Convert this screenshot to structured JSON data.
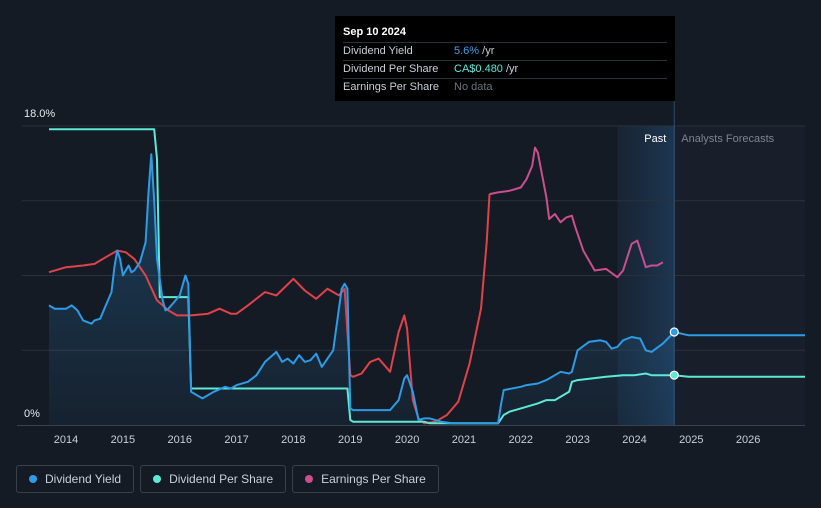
{
  "tooltip": {
    "date": "Sep 10 2024",
    "rows": [
      {
        "label": "Dividend Yield",
        "value": "5.6%",
        "unit": " /yr"
      },
      {
        "label": "Dividend Per Share",
        "value": "CA$0.480",
        "unit": " /yr"
      },
      {
        "label": "Earnings Per Share",
        "value": "No data",
        "unit": ""
      }
    ]
  },
  "regions": {
    "past": "Past",
    "forecast": "Analysts Forecasts"
  },
  "legend": [
    {
      "label": "Dividend Yield",
      "color": "#2d9be6"
    },
    {
      "label": "Dividend Per Share",
      "color": "#5ee8d6"
    },
    {
      "label": "Earnings Per Share",
      "color": "#c94f8f"
    }
  ],
  "colors": {
    "background": "#151b25",
    "dividend_yield": "#2d9be6",
    "dividend_per_share": "#5ee8d6",
    "eps_past": "#e0424a",
    "eps_recent": "#c94f8f",
    "forecast_band": "#1c2e44"
  },
  "chart_data": {
    "type": "line",
    "y_tick_labels": [
      "18.0%",
      "0%"
    ],
    "ylim": [
      0,
      18
    ],
    "xlim": [
      2013.7,
      2027
    ],
    "x_tick_labels": [
      "2014",
      "2015",
      "2016",
      "2017",
      "2018",
      "2019",
      "2020",
      "2021",
      "2022",
      "2023",
      "2024",
      "2025",
      "2026"
    ],
    "x_ticks": [
      2014,
      2015,
      2016,
      2017,
      2018,
      2019,
      2020,
      2021,
      2022,
      2023,
      2024,
      2025,
      2026
    ],
    "forecast_start": 2024.7,
    "past_band_start": 2023.7,
    "grid": true,
    "series": [
      {
        "name": "Dividend Yield",
        "x": [
          2013.7,
          2013.8,
          2014.0,
          2014.1,
          2014.2,
          2014.3,
          2014.45,
          2014.5,
          2014.6,
          2014.7,
          2014.8,
          2014.85,
          2014.9,
          2014.95,
          2015.0,
          2015.1,
          2015.15,
          2015.2,
          2015.3,
          2015.4,
          2015.45,
          2015.5,
          2015.55,
          2015.6,
          2015.7,
          2015.75,
          2015.8,
          2015.9,
          2016.0,
          2016.1,
          2016.15,
          2016.2,
          2016.3,
          2016.4,
          2016.6,
          2016.8,
          2016.9,
          2017.0,
          2017.2,
          2017.35,
          2017.5,
          2017.6,
          2017.7,
          2017.8,
          2017.9,
          2018.0,
          2018.1,
          2018.2,
          2018.3,
          2018.4,
          2018.5,
          2018.6,
          2018.7,
          2018.8,
          2018.85,
          2018.9,
          2018.95,
          2019.0,
          2019.05,
          2019.3,
          2019.5,
          2019.7,
          2019.85,
          2019.95,
          2020.0,
          2020.1,
          2020.2,
          2020.3,
          2020.4,
          2020.6,
          2020.8,
          2021.0,
          2021.3,
          2021.6,
          2021.65,
          2021.7,
          2022.0,
          2022.1,
          2022.3,
          2022.45,
          2022.5,
          2022.7,
          2022.85,
          2022.9,
          2023.0,
          2023.2,
          2023.4,
          2023.5,
          2023.6,
          2023.7,
          2023.8,
          2023.95,
          2024.1,
          2024.2,
          2024.3,
          2024.5,
          2024.7
        ],
        "y": [
          7.2,
          7.0,
          7.0,
          7.2,
          6.9,
          6.3,
          6.1,
          6.3,
          6.4,
          7.2,
          8.0,
          9.5,
          10.5,
          10.0,
          9.0,
          9.6,
          9.2,
          9.3,
          9.8,
          11.0,
          14.0,
          16.3,
          13.5,
          10.0,
          7.5,
          6.9,
          7.0,
          7.4,
          7.8,
          9.0,
          8.5,
          2.0,
          1.8,
          1.6,
          2.0,
          2.3,
          2.2,
          2.4,
          2.6,
          3.0,
          3.8,
          4.1,
          4.4,
          3.8,
          4.0,
          3.7,
          4.2,
          3.8,
          3.9,
          4.3,
          3.5,
          4.0,
          4.5,
          7.0,
          8.2,
          8.5,
          8.2,
          1.0,
          0.9,
          0.9,
          0.9,
          0.9,
          1.5,
          2.8,
          3.0,
          2.0,
          0.3,
          0.4,
          0.4,
          0.2,
          0.1,
          0.1,
          0.1,
          0.1,
          1.2,
          2.1,
          2.3,
          2.4,
          2.5,
          2.7,
          2.8,
          3.2,
          3.1,
          3.2,
          4.5,
          5.0,
          5.1,
          5.0,
          4.6,
          4.7,
          5.1,
          5.3,
          5.2,
          4.5,
          4.4,
          4.9,
          5.6
        ]
      },
      {
        "name": "Dividend Per Share",
        "x": [
          2013.7,
          2015.55,
          2015.6,
          2015.65,
          2016.1,
          2016.15,
          2016.2,
          2018.9,
          2018.95,
          2019.0,
          2019.05,
          2020.3,
          2020.4,
          2021.6,
          2021.7,
          2021.8,
          2022.0,
          2022.3,
          2022.45,
          2022.6,
          2022.8,
          2022.85,
          2022.9,
          2023.0,
          2023.5,
          2023.8,
          2024.0,
          2024.2,
          2024.3,
          2024.5,
          2024.7
        ],
        "y": [
          17.8,
          17.8,
          16.0,
          7.7,
          7.7,
          7.7,
          2.2,
          2.2,
          2.2,
          0.3,
          0.2,
          0.2,
          0.1,
          0.1,
          0.6,
          0.8,
          1.0,
          1.3,
          1.5,
          1.5,
          1.9,
          2.0,
          2.6,
          2.7,
          2.9,
          3.0,
          3.0,
          3.1,
          3.0,
          3.0,
          3.0
        ]
      },
      {
        "name": "Earnings Per Share",
        "x": [
          2013.7,
          2014.0,
          2014.3,
          2014.5,
          2014.7,
          2014.9,
          2015.05,
          2015.2,
          2015.4,
          2015.6,
          2015.8,
          2015.95,
          2016.2,
          2016.5,
          2016.7,
          2016.9,
          2017.0,
          2017.2,
          2017.5,
          2017.7,
          2017.85,
          2018.0,
          2018.2,
          2018.4,
          2018.6,
          2018.8,
          2018.9,
          2019.0,
          2019.05,
          2019.2,
          2019.35,
          2019.5,
          2019.6,
          2019.7,
          2019.85,
          2019.95,
          2020.0,
          2020.1,
          2020.2,
          2020.3,
          2020.5,
          2020.7,
          2020.9,
          2021.1,
          2021.3,
          2021.4,
          2021.45,
          2021.6,
          2021.8,
          2022.0,
          2022.1,
          2022.2,
          2022.25,
          2022.3,
          2022.45,
          2022.5,
          2022.6,
          2022.7,
          2022.8,
          2022.9,
          2022.95,
          2023.1,
          2023.3,
          2023.5,
          2023.7,
          2023.8,
          2023.95,
          2024.05,
          2024.2,
          2024.3,
          2024.4,
          2024.5
        ],
        "y": [
          9.2,
          9.5,
          9.6,
          9.7,
          10.1,
          10.5,
          10.4,
          10.0,
          9.0,
          7.5,
          6.9,
          6.6,
          6.6,
          6.7,
          7.0,
          6.7,
          6.7,
          7.2,
          8.0,
          7.8,
          8.3,
          8.8,
          8.1,
          7.6,
          8.2,
          7.8,
          8.2,
          3.0,
          2.9,
          3.1,
          3.8,
          4.0,
          3.6,
          3.2,
          5.6,
          6.6,
          5.8,
          1.5,
          0.4,
          0.1,
          0.2,
          0.6,
          1.4,
          3.7,
          7.0,
          11.0,
          13.9,
          14.0,
          14.1,
          14.3,
          14.8,
          15.6,
          16.7,
          16.4,
          13.7,
          12.4,
          12.7,
          12.2,
          12.5,
          12.6,
          12.0,
          10.5,
          9.3,
          9.4,
          8.9,
          9.3,
          10.9,
          11.1,
          9.5,
          9.6,
          9.6,
          9.8
        ]
      }
    ],
    "forecast": {
      "dividend_yield": {
        "x": [
          2024.7,
          2024.95,
          2027
        ],
        "y": [
          5.6,
          5.4,
          5.4
        ]
      },
      "dividend_per_share": {
        "x": [
          2024.7,
          2024.95,
          2027
        ],
        "y": [
          3.0,
          2.9,
          2.9
        ]
      }
    }
  }
}
